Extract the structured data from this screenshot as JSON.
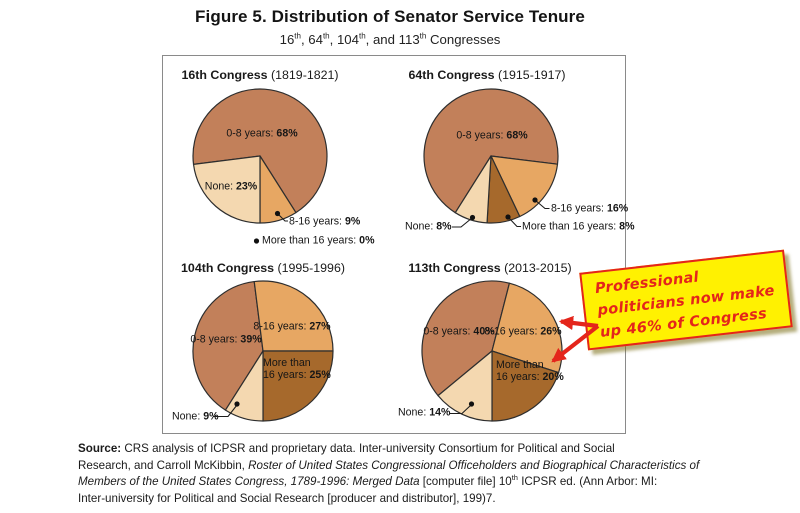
{
  "figure": {
    "title": "Figure 5. Distribution of Senator Service Tenure",
    "subtitle": {
      "t1": "16",
      "t2": ", 64",
      "t3": ", 104",
      "t4": ", and 113",
      "t5": " Congresses",
      "sup": "th"
    }
  },
  "chart_data": {
    "type": "pie",
    "layout": "2x2 small multiples inside gray border box",
    "outline_color": "#2e2e2e",
    "categories": [
      "0-8 years",
      "8-16 years",
      "More than 16 years",
      "None"
    ],
    "palette": {
      "zero_to_eight": "#C2805A",
      "eight_to_sixteen": "#E7A763",
      "more_than_sixteen": "#A6692C",
      "none": "#F4D8B0"
    },
    "pies": [
      {
        "name": "16th Congress",
        "dates": "(1819-1821)",
        "start_angle_deg": 262.8,
        "slices": [
          {
            "label": "0-8 years",
            "pct": 68,
            "color": "#C2805A",
            "display_name": "0-8 years: ",
            "display_value": "68%"
          },
          {
            "label": "8-16 years",
            "pct": 9,
            "color": "#E7A763",
            "display_name": "8-16 years: ",
            "display_value": "9%"
          },
          {
            "label": "More than 16 years",
            "pct": 0,
            "color": "#A6692C",
            "display_name": "More than 16 years: ",
            "display_value": "0%"
          },
          {
            "label": "None",
            "pct": 23,
            "color": "#F4D8B0",
            "display_name": "None: ",
            "display_value": "23%"
          }
        ]
      },
      {
        "name": "64th Congress",
        "dates": "(1915-1917)",
        "start_angle_deg": 212.2,
        "slices": [
          {
            "label": "0-8 years",
            "pct": 68,
            "color": "#C2805A",
            "display_name": "0-8 years: ",
            "display_value": "68%"
          },
          {
            "label": "8-16 years",
            "pct": 16,
            "color": "#E7A763",
            "display_name": "8-16 years: ",
            "display_value": "16%"
          },
          {
            "label": "More than 16 years",
            "pct": 8,
            "color": "#A6692C",
            "display_name": "More than 16 years: ",
            "display_value": "8%"
          },
          {
            "label": "None",
            "pct": 8,
            "color": "#F4D8B0",
            "display_name": "None: ",
            "display_value": "8%"
          }
        ]
      },
      {
        "name": "104th Congress",
        "dates": "(1995-1996)",
        "start_angle_deg": 212.4,
        "slices": [
          {
            "label": "0-8 years",
            "pct": 39,
            "color": "#C2805A",
            "display_name": "0-8 years: ",
            "display_value": "39%"
          },
          {
            "label": "8-16 years",
            "pct": 27,
            "color": "#E7A763",
            "display_name": "8-16 years: ",
            "display_value": "27%"
          },
          {
            "label": "More than 16 years",
            "pct": 25,
            "color": "#A6692C",
            "display_name_l1": "More than",
            "display_name_l2": "16 years: ",
            "display_value": "25%"
          },
          {
            "label": "None",
            "pct": 9,
            "color": "#F4D8B0",
            "display_name": "None: ",
            "display_value": "9%"
          }
        ]
      },
      {
        "name": "113th Congress",
        "dates": "(2013-2015)",
        "start_angle_deg": 230.4,
        "slices": [
          {
            "label": "0-8 years",
            "pct": 40,
            "color": "#C2805A",
            "display_name": "0-8 years: ",
            "display_value": "40%"
          },
          {
            "label": "8-16 years",
            "pct": 26,
            "color": "#E7A763",
            "display_name": "8-16 years: ",
            "display_value": "26%"
          },
          {
            "label": "More than 16 years",
            "pct": 20,
            "color": "#A6692C",
            "display_name_l1": "More than",
            "display_name_l2": "16 years: ",
            "display_value": "20%"
          },
          {
            "label": "None",
            "pct": 14,
            "color": "#F4D8B0",
            "display_name": "None: ",
            "display_value": "14%"
          }
        ]
      }
    ]
  },
  "note": {
    "lines": [
      "Professional",
      "politicians now make",
      "up 46% of Congress"
    ],
    "bg_color": "#FFF101",
    "accent_color": "#E4251B"
  },
  "source": {
    "l1b": "Source:",
    "l1r": " CRS analysis of ICPSR and proprietary data. Inter-university Consortium for Political and Social",
    "l2r": "Research, and Carroll McKibbin, ",
    "l2i": "Roster of United States Congressional Officeholders and Biographical Characteristics of",
    "l3i": "Members of the United States Congress, 1789-1996: Merged Data",
    "l3r1": " [computer file] 10",
    "l3sup": "th",
    "l3r2": " ICPSR ed. (Ann Arbor: MI:",
    "l4r": "Inter-university for Political and Social Research [producer and distributor], 199)7."
  }
}
